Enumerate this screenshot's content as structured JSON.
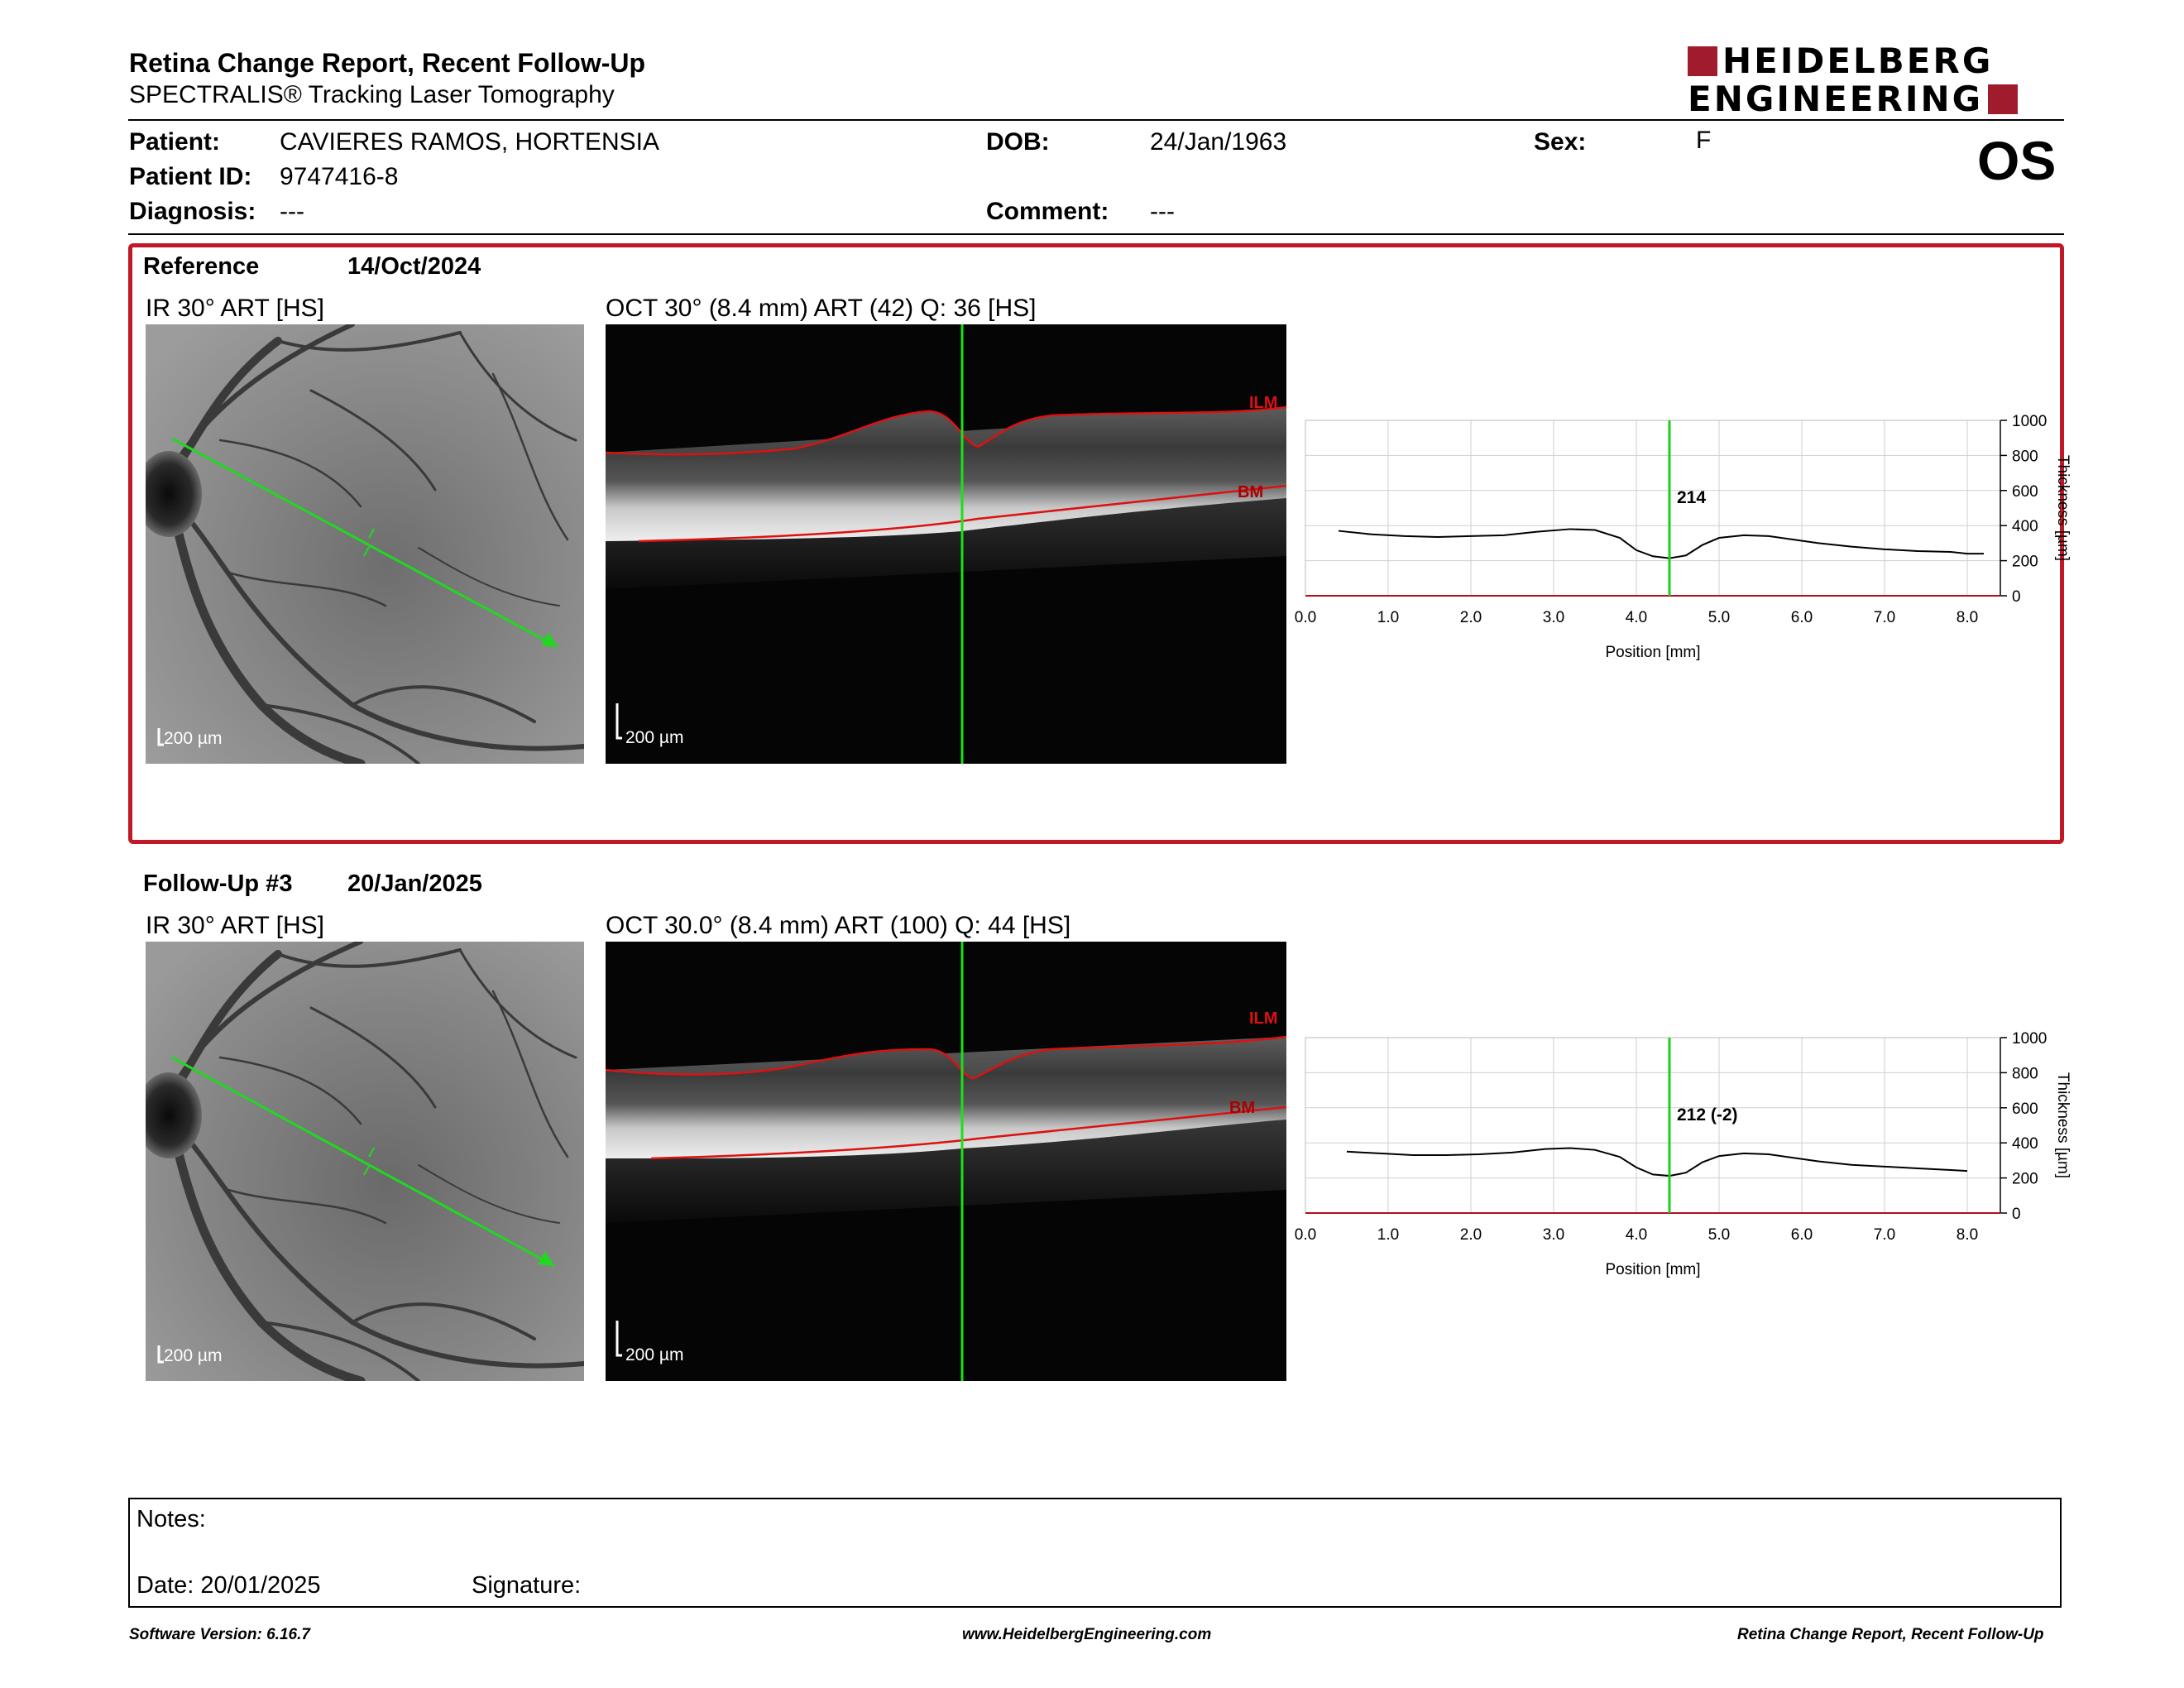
{
  "header": {
    "title": "Retina Change Report, Recent Follow-Up",
    "subtitle": "SPECTRALIS® Tracking Laser Tomography",
    "logo_line1": "HEIDELBERG",
    "logo_line2": "ENGINEERING",
    "brand_color": "#a01c2d"
  },
  "patient": {
    "patient_label": "Patient:",
    "patient_value": "CAVIERES RAMOS, HORTENSIA",
    "id_label": "Patient ID:",
    "id_value": "9747416-8",
    "diagnosis_label": "Diagnosis:",
    "diagnosis_value": "---",
    "dob_label": "DOB:",
    "dob_value": "24/Jan/1963",
    "comment_label": "Comment:",
    "comment_value": "---",
    "sex_label": "Sex:",
    "sex_value": "F",
    "eye": "OS"
  },
  "reference": {
    "label": "Reference",
    "date": "14/Oct/2024",
    "ir_caption": "IR 30° ART [HS]",
    "oct_caption": "OCT 30° (8.4 mm) ART (42) Q: 36 [HS]",
    "ir_scale": "200 µm",
    "oct_scale": "200 µm",
    "ilm": "ILM",
    "bm": "BM",
    "box_color": "#c01825"
  },
  "followup": {
    "label": "Follow-Up #3",
    "date": "20/Jan/2025",
    "ir_caption": "IR 30° ART [HS]",
    "oct_caption": "OCT 30.0° (8.4 mm) ART (100) Q: 44 [HS]",
    "ir_scale": "200 µm",
    "oct_scale": "200 µm",
    "ilm": "ILM",
    "bm": "BM"
  },
  "chart_data": [
    {
      "type": "line",
      "xlabel": "Position [mm]",
      "ylabel": "Thickness [µm]",
      "xlim": [
        0,
        8.4
      ],
      "ylim": [
        0,
        1000
      ],
      "x_ticks": [
        "0.0",
        "1.0",
        "2.0",
        "3.0",
        "4.0",
        "5.0",
        "6.0",
        "7.0",
        "8.0"
      ],
      "y_ticks": [
        "0",
        "200",
        "400",
        "600",
        "800",
        "1000"
      ],
      "grid": true,
      "cursor_x": 4.4,
      "cursor_label": "214",
      "x": [
        0.4,
        0.8,
        1.2,
        1.6,
        2.0,
        2.4,
        2.8,
        3.2,
        3.5,
        3.8,
        4.0,
        4.2,
        4.4,
        4.6,
        4.8,
        5.0,
        5.3,
        5.6,
        5.9,
        6.2,
        6.6,
        7.0,
        7.4,
        7.8,
        8.0,
        8.2
      ],
      "y": [
        370,
        350,
        340,
        335,
        340,
        345,
        365,
        380,
        375,
        330,
        260,
        225,
        214,
        230,
        290,
        330,
        345,
        340,
        320,
        300,
        280,
        265,
        255,
        250,
        240,
        240
      ]
    },
    {
      "type": "line",
      "xlabel": "Position [mm]",
      "ylabel": "Thickness [µm]",
      "xlim": [
        0,
        8.4
      ],
      "ylim": [
        0,
        1000
      ],
      "x_ticks": [
        "0.0",
        "1.0",
        "2.0",
        "3.0",
        "4.0",
        "5.0",
        "6.0",
        "7.0",
        "8.0"
      ],
      "y_ticks": [
        "0",
        "200",
        "400",
        "600",
        "800",
        "1000"
      ],
      "grid": true,
      "cursor_x": 4.4,
      "cursor_label": "212 (-2)",
      "x": [
        0.5,
        0.9,
        1.3,
        1.7,
        2.1,
        2.5,
        2.9,
        3.2,
        3.5,
        3.8,
        4.0,
        4.2,
        4.4,
        4.6,
        4.8,
        5.0,
        5.3,
        5.6,
        5.9,
        6.2,
        6.6,
        7.0,
        7.4,
        7.8,
        8.0
      ],
      "y": [
        350,
        340,
        330,
        330,
        335,
        345,
        365,
        370,
        360,
        320,
        260,
        220,
        212,
        230,
        290,
        325,
        340,
        335,
        315,
        295,
        275,
        265,
        255,
        245,
        240
      ]
    }
  ],
  "notes": {
    "notes_label": "Notes:",
    "date_label": "Date: 20/01/2025",
    "signature_label": "Signature:"
  },
  "footer": {
    "left": "Software Version: 6.16.7",
    "center": "www.HeidelbergEngineering.com",
    "right": "Retina Change Report, Recent Follow-Up"
  }
}
